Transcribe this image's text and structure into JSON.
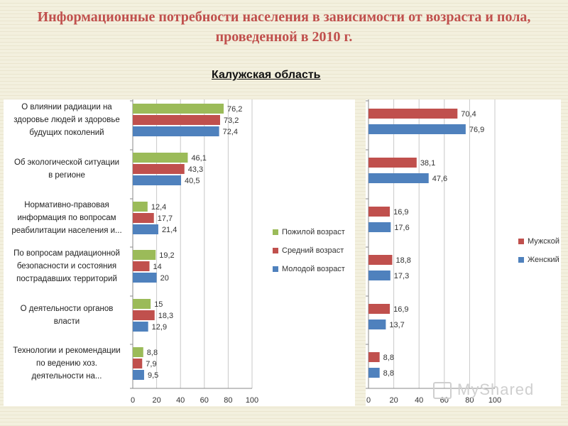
{
  "header": {
    "title_line1": "Информационные потребности населения в зависимости от возраста и пола,",
    "title_line2": "проведенной в 2010 г.",
    "subtitle": "Калужская область"
  },
  "watermark": {
    "text": "MyShared"
  },
  "colors": {
    "green": "#9bbb59",
    "red": "#c0504d",
    "blue": "#4f81bd",
    "title": "#c0504d"
  },
  "chart_data": [
    {
      "type": "bar",
      "orientation": "horizontal",
      "categories": [
        [
          "О влиянии радиации на",
          "здоровье людей и здоровье",
          "будущих поколений"
        ],
        [
          "Об экологической ситуации",
          "в регионе"
        ],
        [
          "Нормативно-правовая",
          "информация по вопросам",
          "реабилитации населения и..."
        ],
        [
          "По вопросам радиационной",
          "безопасности и  состояния",
          "пострадавших территорий"
        ],
        [
          "О деятельности органов",
          "власти"
        ],
        [
          "Технологии и рекомендации",
          "по ведению хоз.",
          "деятельности на..."
        ]
      ],
      "series": [
        {
          "name": "Пожилой возраст",
          "color": "#9bbb59",
          "values": [
            76.2,
            46.1,
            12.4,
            19.2,
            15,
            8.8
          ],
          "labels": [
            "76,2",
            "46,1",
            "12,4",
            "19,2",
            "15",
            "8,8"
          ]
        },
        {
          "name": "Средний возраст",
          "color": "#c0504d",
          "values": [
            73.2,
            43.3,
            17.7,
            14,
            18.3,
            7.9
          ],
          "labels": [
            "73,2",
            "43,3",
            "17,7",
            "14",
            "18,3",
            "7,9"
          ]
        },
        {
          "name": "Молодой возраст",
          "color": "#4f81bd",
          "values": [
            72.4,
            40.5,
            21.4,
            20,
            12.9,
            9.5
          ],
          "labels": [
            "72,4",
            "40,5",
            "21,4",
            "20",
            "12,9",
            "9,5"
          ]
        }
      ],
      "xlim": [
        0,
        100
      ],
      "xticks": [
        "0",
        "20",
        "40",
        "60",
        "80",
        "100"
      ],
      "grid": true,
      "legend": "right"
    },
    {
      "type": "bar",
      "orientation": "horizontal",
      "series": [
        {
          "name": "Мужской",
          "color": "#c0504d",
          "values": [
            70.4,
            38.1,
            16.9,
            18.8,
            16.9,
            8.8
          ],
          "labels": [
            "70,4",
            "38,1",
            "16,9",
            "18,8",
            "16,9",
            "8,8"
          ]
        },
        {
          "name": "Женский",
          "color": "#4f81bd",
          "values": [
            76.9,
            47.6,
            17.6,
            17.3,
            13.7,
            8.8
          ],
          "labels": [
            "76,9",
            "47,6",
            "17,6",
            "17,3",
            "13,7",
            "8,8"
          ]
        }
      ],
      "xlim": [
        0,
        100
      ],
      "xticks": [
        "0",
        "20",
        "40",
        "60",
        "80",
        "100"
      ],
      "grid": true,
      "legend": "right"
    }
  ]
}
